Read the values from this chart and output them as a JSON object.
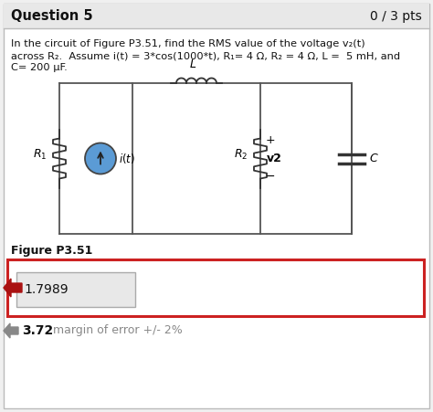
{
  "title": "Question 5",
  "pts": "0 / 3 pts",
  "q_line1": "In the circuit of Figure P3.51, find the RMS value of the voltage v₂(t)",
  "q_line2": "across R₂.  Assume i(t) = 3*cos(1000*t), R₁= 4 Ω, R₂ = 4 Ω, L =  5 mH, and",
  "q_line3": "C= 200 μF.",
  "figure_label": "Figure P3.51",
  "answer_value": "1.7989",
  "correct_value": "3.72",
  "margin_text": "margin of error +/- 2%",
  "bg_color": "#f0f0f0",
  "page_bg": "#ffffff",
  "answer_box_color": "#cc2222",
  "answer_field_bg": "#e8e8e8",
  "arrow_fill": "#5b9bd5",
  "red_arrow_color": "#aa1111",
  "gray_arrow_color": "#888888",
  "header_bg": "#e8e8e8"
}
